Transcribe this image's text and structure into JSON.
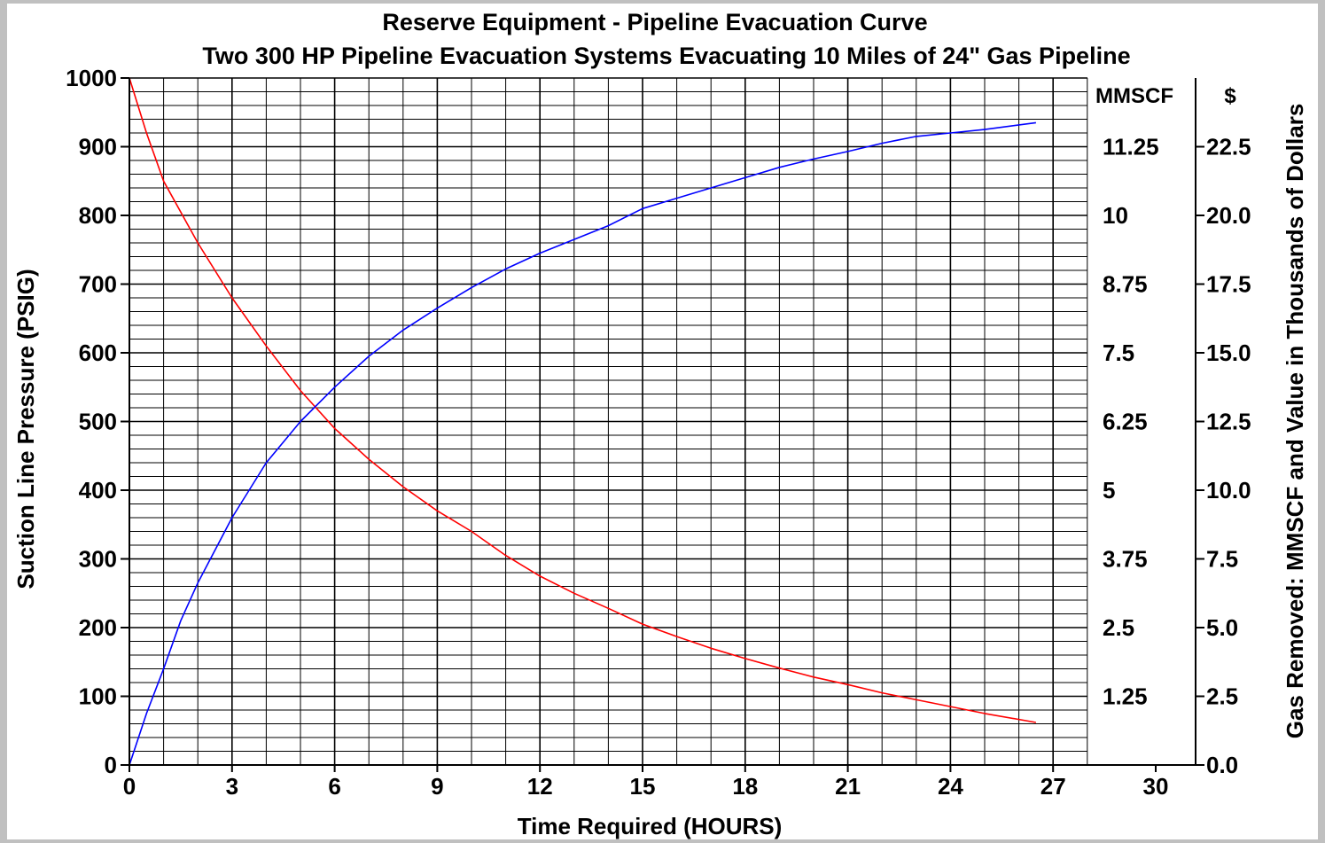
{
  "chart_data": {
    "type": "line",
    "title": "Reserve Equipment - Pipeline Evacuation Curve",
    "subtitle": "Two 300 HP Pipeline Evacuation Systems Evacuating 10 Miles of 24\" Gas Pipeline",
    "xlabel": "Time Required (HOURS)",
    "ylabel": "Suction Line Pressure  (PSIG)",
    "y2label": "Gas Removed: MMSCF and Value in Thousands of Dollars",
    "xlim": [
      0,
      30
    ],
    "ylim": [
      0,
      1000
    ],
    "grid": true,
    "x_ticks": [
      "0",
      "3",
      "6",
      "9",
      "12",
      "15",
      "18",
      "21",
      "24",
      "27",
      "30"
    ],
    "y_ticks": [
      "0",
      "100",
      "200",
      "300",
      "400",
      "500",
      "600",
      "700",
      "800",
      "900",
      "1000"
    ],
    "mmscf_header": "MMSCF",
    "mmscf_ticks": [
      "1.25",
      "2.5",
      "3.75",
      "5",
      "6.25",
      "7.5",
      "8.75",
      "10",
      "11.25"
    ],
    "dollar_header": "$",
    "dollar_ticks": [
      "0.0",
      "2.5",
      "5.0",
      "7.5",
      "10.0",
      "12.5",
      "15.0",
      "17.5",
      "20.0",
      "22.5"
    ],
    "series": [
      {
        "color": "#ff0000",
        "x": [
          0,
          0.5,
          1,
          2,
          3,
          4,
          5,
          6,
          7,
          8,
          9,
          10,
          11,
          12,
          13,
          14,
          15,
          16,
          17,
          18,
          19,
          20,
          21,
          22,
          23,
          24,
          25,
          26.5
        ],
        "y": [
          1000,
          920,
          850,
          760,
          680,
          610,
          545,
          490,
          445,
          405,
          370,
          340,
          305,
          275,
          250,
          228,
          205,
          187,
          170,
          155,
          141,
          128,
          117,
          105,
          95,
          85,
          75,
          62
        ]
      },
      {
        "color": "#0000ff",
        "x": [
          0,
          0.5,
          1,
          1.5,
          2,
          3,
          4,
          5,
          6,
          7,
          8,
          9,
          10,
          11,
          12,
          13,
          14,
          15,
          16,
          17,
          18,
          19,
          20,
          21,
          22,
          23,
          24,
          25,
          26.5
        ],
        "y": [
          0,
          75,
          140,
          210,
          265,
          360,
          440,
          500,
          550,
          595,
          633,
          665,
          695,
          722,
          745,
          765,
          785,
          810,
          825,
          840,
          855,
          870,
          882,
          893,
          905,
          915,
          920,
          925,
          935
        ]
      }
    ]
  }
}
